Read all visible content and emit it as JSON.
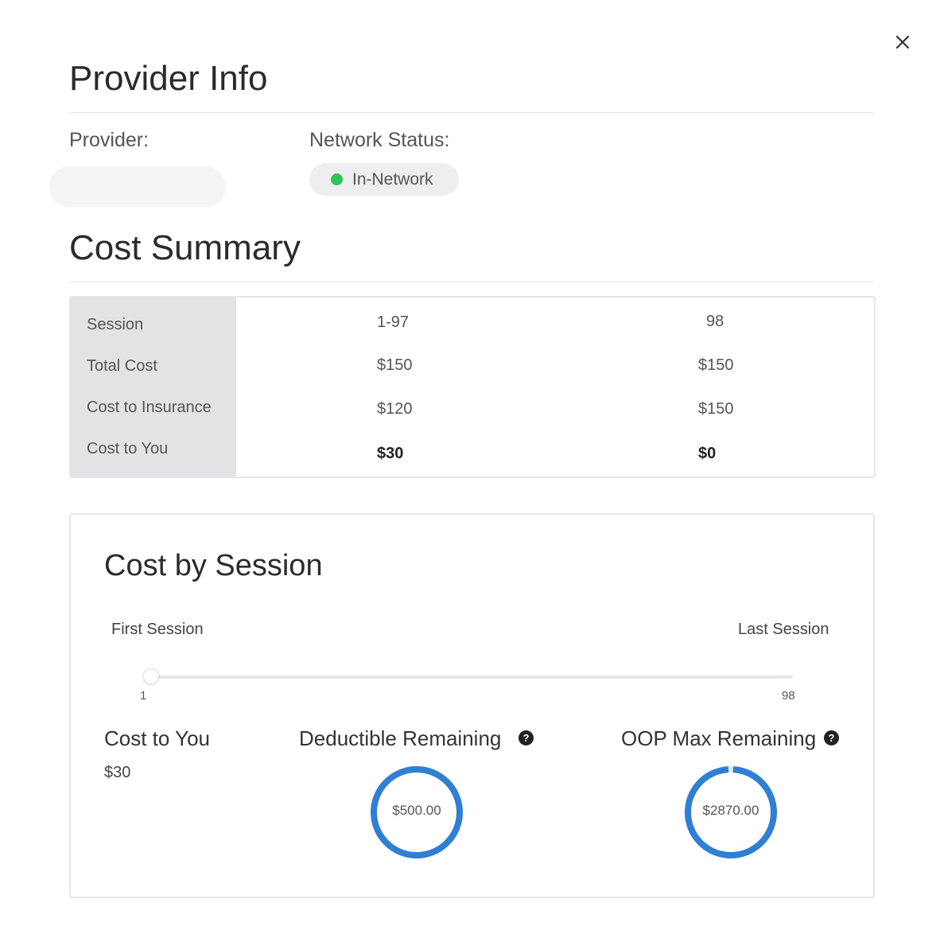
{
  "provider_info": {
    "title": "Provider Info",
    "provider_label": "Provider:",
    "provider_value": "",
    "network_status_label": "Network Status:",
    "network_status": "In-Network",
    "network_status_color": "#2dc653"
  },
  "cost_summary": {
    "title": "Cost Summary",
    "row_headers": [
      "Session",
      "Total Cost",
      "Cost to Insurance",
      "Cost to You"
    ],
    "columns": [
      {
        "session": "1-97",
        "total_cost": "$150",
        "cost_to_insurance": "$120",
        "cost_to_you": "$30"
      },
      {
        "session": "98",
        "total_cost": "$150",
        "cost_to_insurance": "$150",
        "cost_to_you": "$0"
      }
    ]
  },
  "cost_by_session": {
    "title": "Cost by Session",
    "first_label": "First Session",
    "last_label": "Last Session",
    "slider": {
      "min": "1",
      "max": "98",
      "value": 1
    },
    "cost_to_you_title": "Cost to You",
    "cost_to_you_value": "$30",
    "deductible_title": "Deductible Remaining",
    "deductible_value": "$500.00",
    "deductible_fraction_remaining": 1.0,
    "oop_title": "OOP Max Remaining",
    "oop_value": "$2870.00",
    "oop_fraction_remaining": 0.99,
    "help_icon": "?",
    "accent_color": "#2f7fd3"
  }
}
